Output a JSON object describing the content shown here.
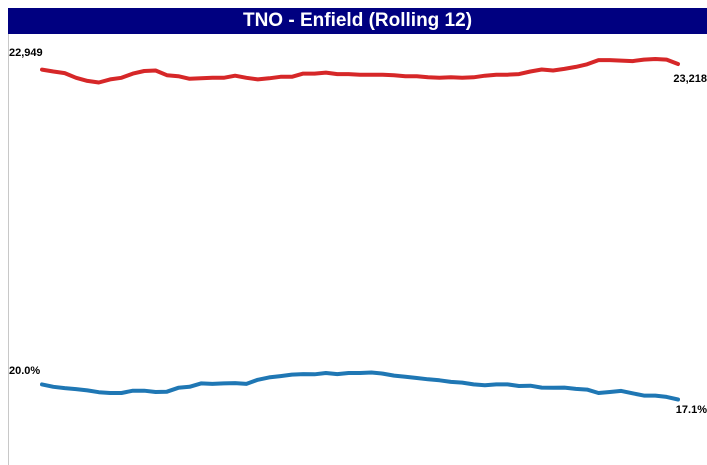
{
  "chart_data": {
    "type": "line",
    "title": "TNO - Enfield (Rolling 12)",
    "series": [
      {
        "color": "#d62728",
        "start_label": "22,949",
        "end_label": "23,218",
        "values": [
          22949,
          22930,
          22915,
          22870,
          22840,
          22825,
          22855,
          22870,
          22910,
          22935,
          22940,
          22895,
          22885,
          22860,
          22865,
          22870,
          22870,
          22890,
          22870,
          22855,
          22865,
          22880,
          22880,
          22910,
          22910,
          22920,
          22905,
          22905,
          22900,
          22900,
          22900,
          22895,
          22885,
          22885,
          22875,
          22870,
          22875,
          22870,
          22875,
          22890,
          22900,
          22900,
          22905,
          22930,
          22950,
          22940,
          22955,
          22975,
          23000,
          23040,
          23040,
          23035,
          23030,
          23045,
          23050,
          23045,
          23218
        ]
      },
      {
        "color": "#1f77b4",
        "start_label": "20.0%",
        "end_label": "17.1%",
        "values": [
          20.0,
          19.55,
          19.3,
          19.1,
          18.85,
          18.5,
          18.35,
          18.35,
          18.8,
          18.8,
          18.55,
          18.6,
          19.35,
          19.55,
          20.2,
          20.1,
          20.2,
          20.25,
          20.1,
          20.9,
          21.35,
          21.6,
          21.9,
          22.0,
          21.95,
          22.2,
          22.0,
          22.2,
          22.2,
          22.3,
          22.1,
          21.7,
          21.5,
          21.25,
          21.0,
          20.8,
          20.5,
          20.35,
          20.0,
          19.85,
          20.0,
          20.0,
          19.7,
          19.75,
          19.4,
          19.35,
          19.4,
          19.15,
          19.0,
          18.35,
          18.55,
          18.75,
          18.3,
          17.85,
          17.85,
          17.6,
          17.1
        ]
      }
    ]
  }
}
